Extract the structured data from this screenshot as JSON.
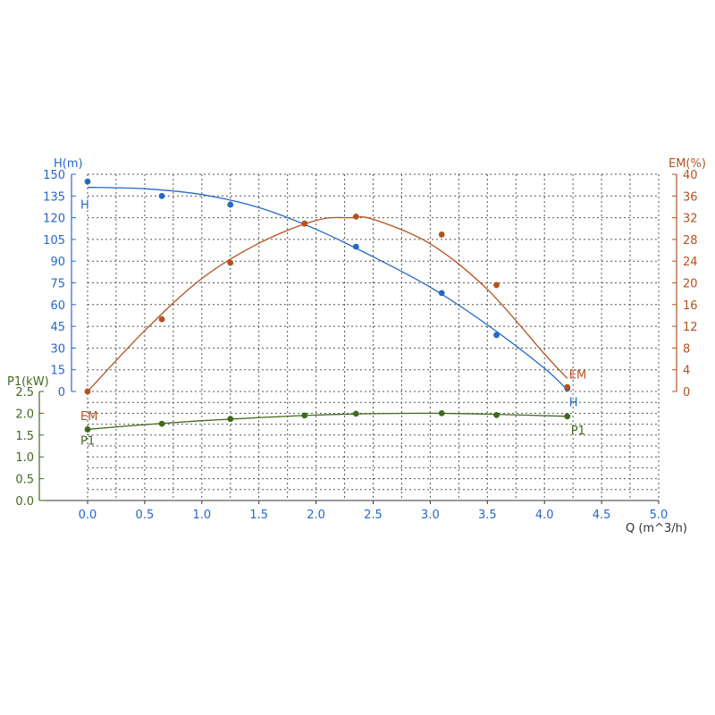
{
  "chart_data": {
    "type": "line",
    "x_axis": {
      "label": "Q (m^3/h)",
      "range": [
        0,
        5
      ],
      "ticks": [
        "0.0",
        "0.5",
        "1.0",
        "1.5",
        "2.0",
        "2.5",
        "3.0",
        "3.5",
        "4.0",
        "4.5",
        "5.0"
      ]
    },
    "axes": {
      "H": {
        "label": "H(m)",
        "range": [
          0,
          150
        ],
        "ticks": [
          "0",
          "15",
          "30",
          "45",
          "60",
          "75",
          "90",
          "105",
          "120",
          "135",
          "150"
        ],
        "position": "left",
        "color": "#2468c9"
      },
      "EM": {
        "label": "EM(%)",
        "range": [
          0,
          40
        ],
        "ticks": [
          "0",
          "4",
          "8",
          "12",
          "16",
          "20",
          "24",
          "28",
          "32",
          "36",
          "40"
        ],
        "position": "right",
        "color": "#b4521e"
      },
      "P1": {
        "label": "P1(kW)",
        "range": [
          0,
          2.5
        ],
        "ticks": [
          "0.0",
          "0.5",
          "1.0",
          "1.5",
          "2.0",
          "2.5"
        ],
        "position": "left-lower",
        "color": "#3f6a1e"
      }
    },
    "grid": true,
    "series": [
      {
        "name": "H",
        "axis": "H",
        "color": "#2468c9",
        "points": [
          [
            0,
            145
          ],
          [
            0.65,
            135
          ],
          [
            1.25,
            129
          ],
          [
            1.9,
            116
          ],
          [
            2.35,
            100
          ],
          [
            3.1,
            68
          ],
          [
            3.58,
            39
          ],
          [
            4.2,
            2
          ]
        ],
        "curve": [
          [
            0,
            141
          ],
          [
            0.5,
            140
          ],
          [
            1.0,
            136
          ],
          [
            1.5,
            127
          ],
          [
            2.0,
            112
          ],
          [
            2.5,
            93
          ],
          [
            3.0,
            72
          ],
          [
            3.5,
            46
          ],
          [
            4.0,
            16
          ],
          [
            4.2,
            1
          ]
        ]
      },
      {
        "name": "EM",
        "axis": "EM",
        "color": "#b4521e",
        "points": [
          [
            0,
            0
          ],
          [
            0.65,
            13.3
          ],
          [
            1.25,
            23.7
          ],
          [
            1.9,
            30.9
          ],
          [
            2.35,
            32.2
          ],
          [
            3.1,
            28.9
          ],
          [
            3.58,
            19.6
          ],
          [
            4.2,
            0.8
          ]
        ],
        "curve": [
          [
            0,
            0
          ],
          [
            0.5,
            11.2
          ],
          [
            1.0,
            20.8
          ],
          [
            1.5,
            27.3
          ],
          [
            2.0,
            31.5
          ],
          [
            2.3,
            32
          ],
          [
            2.5,
            31.7
          ],
          [
            3.0,
            27.2
          ],
          [
            3.5,
            18.8
          ],
          [
            4.0,
            6.9
          ],
          [
            4.2,
            2.4
          ]
        ]
      },
      {
        "name": "P1",
        "axis": "P1",
        "color": "#3f6a1e",
        "points": [
          [
            0,
            1.63
          ],
          [
            0.65,
            1.76
          ],
          [
            1.25,
            1.87
          ],
          [
            1.9,
            1.95
          ],
          [
            2.35,
            1.99
          ],
          [
            3.1,
            2.0
          ],
          [
            3.58,
            1.96
          ],
          [
            4.2,
            1.93
          ]
        ],
        "curve": [
          [
            0,
            1.63
          ],
          [
            0.5,
            1.74
          ],
          [
            1.0,
            1.83
          ],
          [
            1.5,
            1.9
          ],
          [
            2.0,
            1.96
          ],
          [
            2.5,
            1.99
          ],
          [
            3.0,
            2.0
          ],
          [
            3.5,
            1.98
          ],
          [
            4.2,
            1.93
          ]
        ]
      }
    ]
  }
}
